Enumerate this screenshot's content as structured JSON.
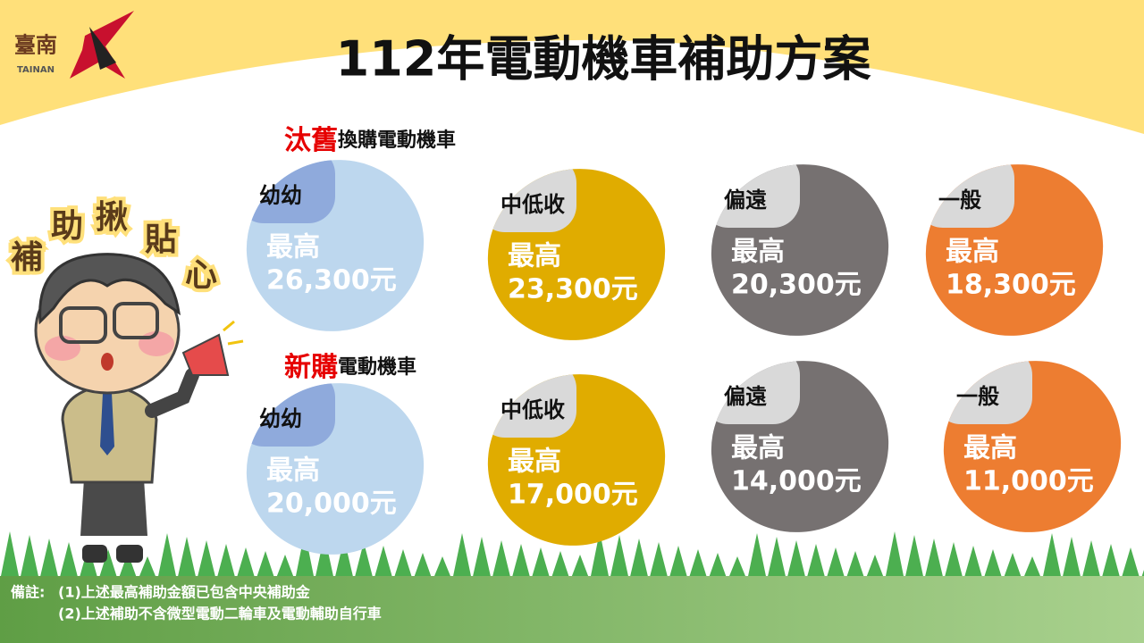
{
  "logo": {
    "text": "臺南",
    "sub": "TAINAN"
  },
  "title": "112年電動機車補助方案",
  "badge": [
    "補",
    "助",
    "揪",
    "貼",
    "心"
  ],
  "sections": [
    {
      "highlight": "汰舊",
      "rest": "換購電動機車",
      "items": [
        {
          "label": "幼幼",
          "prefix": "最高",
          "amount": "26,300元"
        },
        {
          "label": "中低收",
          "prefix": "最高",
          "amount": "23,300元"
        },
        {
          "label": "偏遠",
          "prefix": "最高",
          "amount": "20,300元"
        },
        {
          "label": "一般",
          "prefix": "最高",
          "amount": "18,300元"
        }
      ]
    },
    {
      "highlight": "新購",
      "rest": "電動機車",
      "items": [
        {
          "label": "幼幼",
          "prefix": "最高",
          "amount": "20,000元"
        },
        {
          "label": "中低收",
          "prefix": "最高",
          "amount": "17,000元"
        },
        {
          "label": "偏遠",
          "prefix": "最高",
          "amount": "14,000元"
        },
        {
          "label": "一般",
          "prefix": "最高",
          "amount": "11,000元"
        }
      ]
    }
  ],
  "notes": {
    "label": "備註:",
    "lines": [
      "(1)上述最高補助金額已包含中央補助金",
      "(2)上述補助不含微型電動二輪車及電動輔助自行車"
    ]
  }
}
